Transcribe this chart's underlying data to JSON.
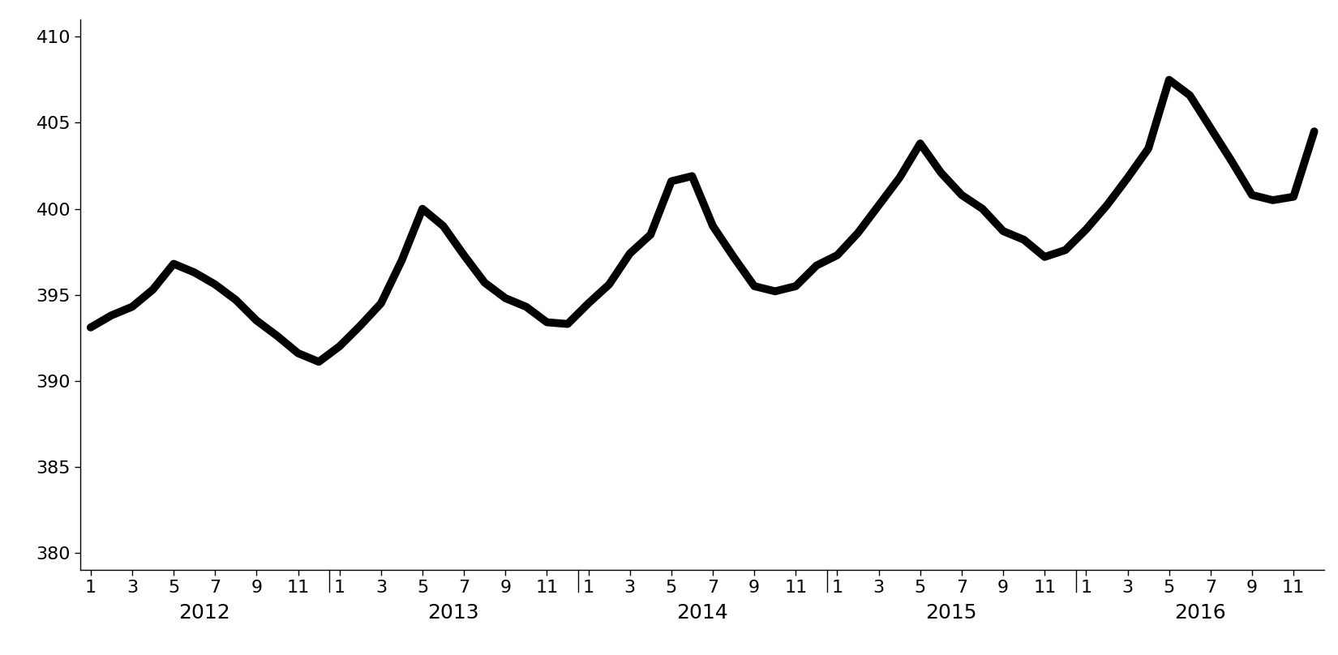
{
  "values": [
    393.1,
    393.8,
    394.3,
    395.3,
    396.8,
    396.3,
    395.6,
    394.7,
    393.5,
    392.6,
    391.6,
    391.1,
    392.0,
    393.2,
    394.5,
    397.0,
    400.0,
    399.0,
    397.3,
    395.7,
    394.8,
    394.3,
    393.4,
    393.3,
    394.5,
    395.6,
    397.4,
    398.5,
    401.6,
    401.9,
    399.0,
    397.2,
    395.5,
    395.2,
    395.5,
    396.7,
    397.3,
    398.6,
    400.2,
    401.8,
    403.8,
    402.1,
    400.8,
    400.0,
    398.7,
    398.2,
    397.2,
    397.6,
    398.8,
    400.2,
    401.8,
    403.5,
    407.5,
    406.6,
    404.7,
    402.8,
    400.8,
    400.5,
    400.7,
    404.5
  ],
  "line_color": "#000000",
  "line_width": 7.0,
  "background_color": "#ffffff",
  "ylim": [
    379,
    411
  ],
  "yticks": [
    380,
    385,
    390,
    395,
    400,
    405,
    410
  ],
  "year_labels": [
    "2012",
    "2013",
    "2014",
    "2015",
    "2016"
  ],
  "axes_color": "#000000",
  "tick_fontsize": 16,
  "year_fontsize": 18
}
